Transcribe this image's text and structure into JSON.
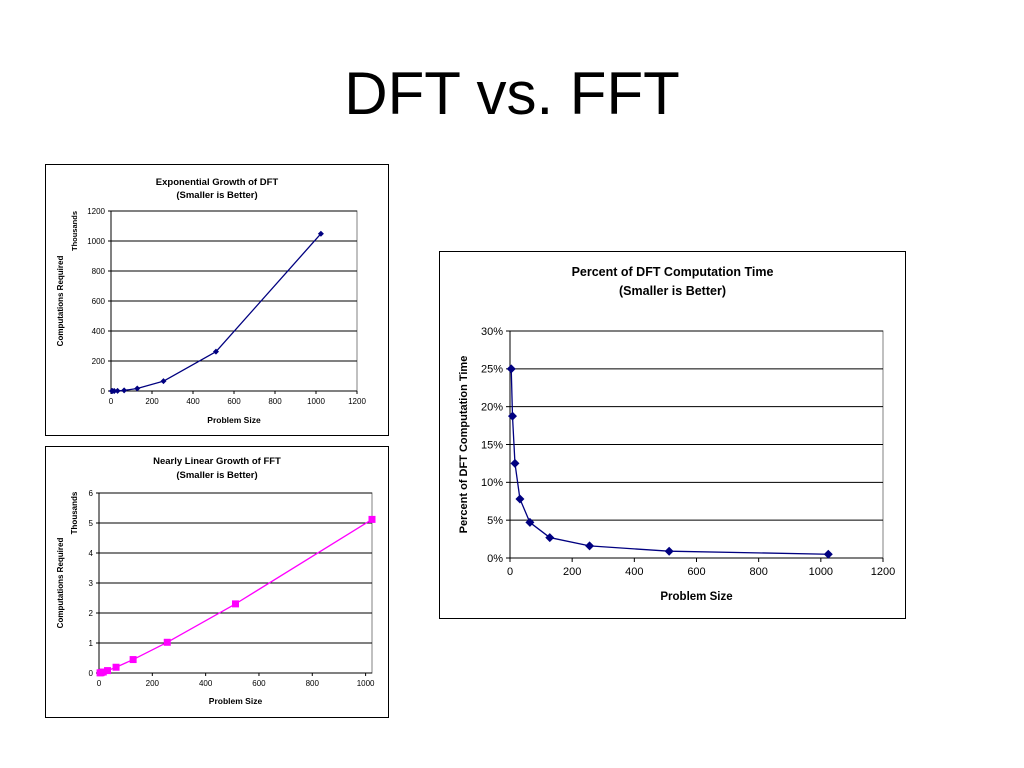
{
  "slide": {
    "title": "DFT vs. FFT"
  },
  "chart_data": [
    {
      "type": "line",
      "title": "Exponential Growth of DFT",
      "subtitle": "(Smaller is Better)",
      "xlabel": "Problem Size",
      "ylabel": "Computations Required",
      "yunit": "Thousands",
      "xlim": [
        0,
        1200
      ],
      "ylim": [
        0,
        1200
      ],
      "xticks": [
        0,
        200,
        400,
        600,
        800,
        1000,
        1200
      ],
      "yticks": [
        0,
        200,
        400,
        600,
        800,
        1000,
        1200
      ],
      "grid": "horizontal",
      "marker": "diamond",
      "color": "#000080",
      "series": [
        {
          "x": [
            4,
            8,
            16,
            32,
            64,
            128,
            256,
            512,
            1024
          ],
          "y": [
            0.016,
            0.064,
            0.256,
            1.024,
            4.096,
            16.384,
            65.536,
            262.144,
            1048.576
          ]
        }
      ]
    },
    {
      "type": "line",
      "title": "Nearly Linear Growth of FFT",
      "subtitle": "(Smaller is Better)",
      "xlabel": "Problem Size",
      "ylabel": "Computations Required",
      "yunit": "Thousands",
      "xlim": [
        0,
        1024
      ],
      "ylim": [
        0,
        6
      ],
      "xticks": [
        0,
        200,
        400,
        600,
        800,
        1000
      ],
      "yticks": [
        0,
        1,
        2,
        3,
        4,
        5,
        6
      ],
      "grid": "horizontal",
      "marker": "square",
      "color": "#ff00ff",
      "series": [
        {
          "x": [
            4,
            8,
            16,
            32,
            64,
            128,
            256,
            512,
            1024
          ],
          "y": [
            0.004,
            0.012,
            0.032,
            0.08,
            0.192,
            0.448,
            1.024,
            2.304,
            5.12
          ]
        }
      ]
    },
    {
      "type": "line",
      "title": "Percent of DFT Computation Time",
      "subtitle": "(Smaller is Better)",
      "xlabel": "Problem Size",
      "ylabel": "Percent of DFT Computation Time",
      "xlim": [
        0,
        1200
      ],
      "ylim": [
        0,
        30
      ],
      "xticks": [
        0,
        200,
        400,
        600,
        800,
        1000,
        1200
      ],
      "yticks": [
        0,
        5,
        10,
        15,
        20,
        25,
        30
      ],
      "yformat": "percent",
      "grid": "horizontal",
      "marker": "diamond",
      "color": "#000080",
      "series": [
        {
          "x": [
            4,
            8,
            16,
            32,
            64,
            128,
            256,
            512,
            1024
          ],
          "y": [
            25,
            18.75,
            12.5,
            7.8,
            4.7,
            2.7,
            1.6,
            0.9,
            0.5
          ]
        }
      ]
    }
  ]
}
